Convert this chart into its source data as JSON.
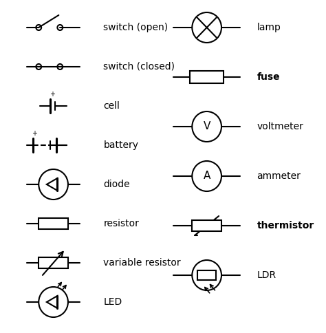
{
  "background_color": "#ffffff",
  "text_color": "#000000",
  "line_color": "#000000",
  "line_width": 1.5,
  "font_size": 10,
  "symbols": [
    {
      "name": "switch (open)",
      "col": "left",
      "row": 0
    },
    {
      "name": "switch (closed)",
      "col": "left",
      "row": 1
    },
    {
      "name": "cell",
      "col": "left",
      "row": 2
    },
    {
      "name": "battery",
      "col": "left",
      "row": 3
    },
    {
      "name": "diode",
      "col": "left",
      "row": 4
    },
    {
      "name": "resistor",
      "col": "left",
      "row": 5
    },
    {
      "name": "variable resistor",
      "col": "left",
      "row": 6
    },
    {
      "name": "LED",
      "col": "left",
      "row": 7
    },
    {
      "name": "lamp",
      "col": "right",
      "row": 0
    },
    {
      "name": "fuse",
      "col": "right",
      "row": 1
    },
    {
      "name": "voltmeter",
      "col": "right",
      "row": 2
    },
    {
      "name": "ammeter",
      "col": "right",
      "row": 3
    },
    {
      "name": "thermistor",
      "col": "right",
      "row": 4
    },
    {
      "name": "LDR",
      "col": "right",
      "row": 5
    }
  ]
}
